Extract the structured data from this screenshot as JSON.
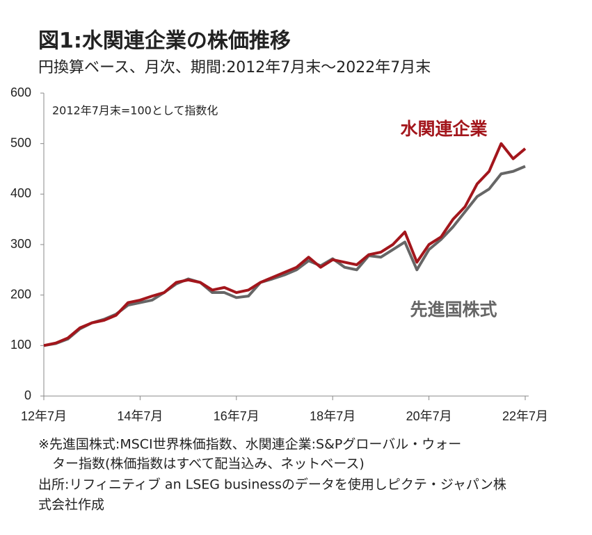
{
  "chart_data": {
    "type": "line",
    "title": "図1:水関連企業の株価推移",
    "subtitle": "円換算ベース、月次、期間:2012年7月末～2022年7月末",
    "annotation": "2012年7月末=100として指数化",
    "categories": [
      "12年7月",
      null,
      null,
      null,
      null,
      null,
      null,
      null,
      "14年7月",
      null,
      null,
      null,
      null,
      null,
      null,
      null,
      "16年7月",
      null,
      null,
      null,
      null,
      null,
      null,
      null,
      "18年7月",
      null,
      null,
      null,
      null,
      null,
      null,
      null,
      "20年7月",
      null,
      null,
      null,
      null,
      null,
      null,
      null,
      "22年7月"
    ],
    "series": [
      {
        "name": "水関連企業",
        "color": "#a3161c",
        "values": [
          100,
          105,
          115,
          135,
          145,
          150,
          160,
          185,
          190,
          198,
          205,
          225,
          230,
          225,
          210,
          215,
          205,
          210,
          225,
          235,
          245,
          255,
          275,
          255,
          270,
          265,
          260,
          280,
          285,
          300,
          325,
          265,
          300,
          315,
          350,
          375,
          420,
          445,
          500,
          470,
          490
        ]
      },
      {
        "name": "先進国株式",
        "color": "#666666",
        "values": [
          100,
          104,
          113,
          133,
          145,
          152,
          162,
          180,
          185,
          190,
          205,
          222,
          232,
          225,
          205,
          205,
          195,
          198,
          225,
          232,
          240,
          250,
          268,
          258,
          272,
          255,
          250,
          278,
          275,
          290,
          305,
          250,
          290,
          310,
          335,
          365,
          395,
          410,
          440,
          445,
          455
        ]
      }
    ],
    "ylim": [
      0,
      600
    ],
    "yticks": [
      0,
      100,
      200,
      300,
      400,
      500,
      600
    ],
    "notes": [
      "※先進国株式:MSCI世界株価指数、水関連企業:S&Pグローバル・ウォー",
      "ター指数(株価指数はすべて配当込み、ネットベース)",
      "出所:リフィニティブ an LSEG businessのデータを使用しピクテ・ジャパン株",
      "式会社作成"
    ]
  }
}
